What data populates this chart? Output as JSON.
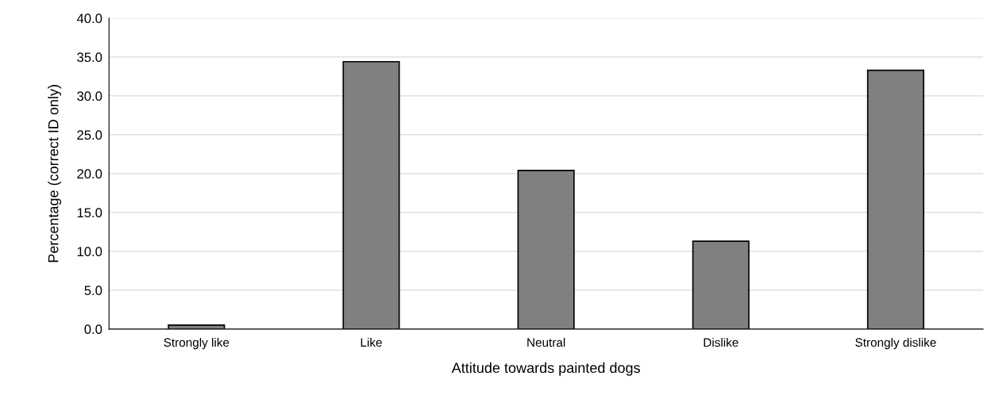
{
  "chart_data": {
    "type": "bar",
    "xlabel": "Attitude towards painted dogs",
    "ylabel": "Percentage (correct ID only)",
    "categories": [
      "Strongly like",
      "Like",
      "Neutral",
      "Dislike",
      "Strongly dislike"
    ],
    "values": [
      0.5,
      34.4,
      20.4,
      11.3,
      33.3
    ],
    "color": "#808080",
    "ylim": [
      0,
      40
    ],
    "yticks": [
      {
        "value": 0,
        "label": "0.0"
      },
      {
        "value": 5,
        "label": "5.0"
      },
      {
        "value": 10,
        "label": "10.0"
      },
      {
        "value": 15,
        "label": "15.0"
      },
      {
        "value": 20,
        "label": "20.0"
      },
      {
        "value": 25,
        "label": "25.0"
      },
      {
        "value": 30,
        "label": "30.0"
      },
      {
        "value": 35,
        "label": "35.0"
      },
      {
        "value": 40,
        "label": "40.0"
      }
    ],
    "grid": "y"
  }
}
